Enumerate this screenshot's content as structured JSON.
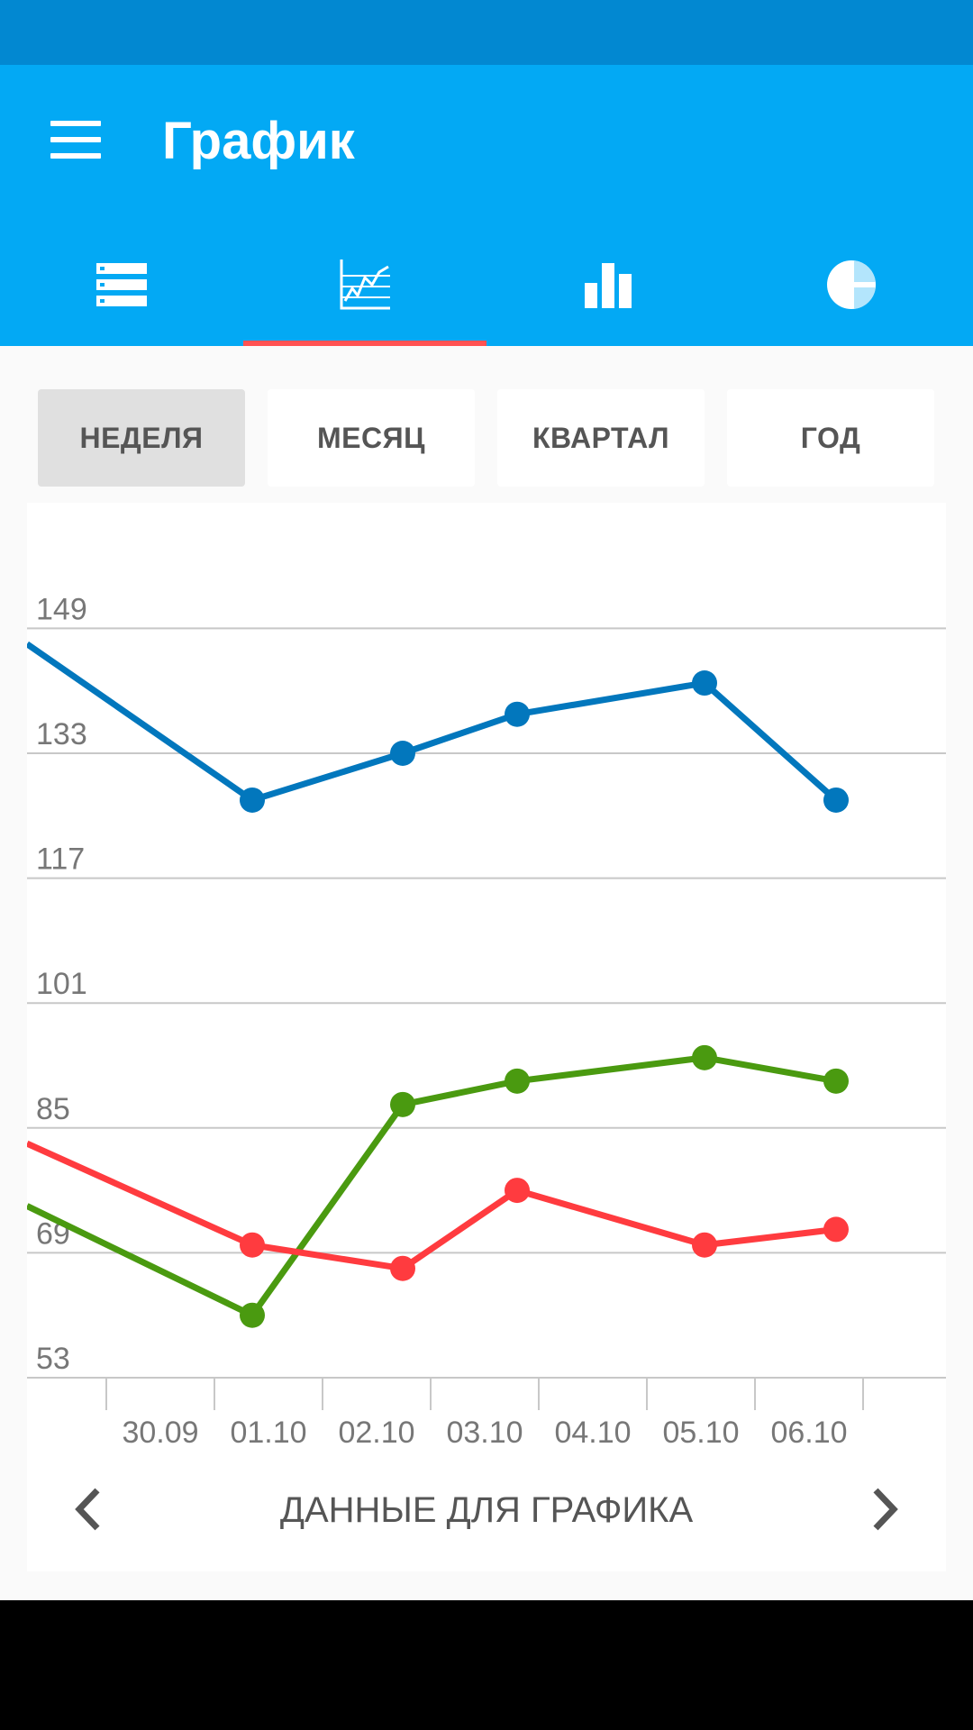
{
  "app_bar": {
    "title": "График"
  },
  "tabs": [
    {
      "name": "tab-list",
      "icon": "list-icon",
      "selected": false
    },
    {
      "name": "tab-line-chart",
      "icon": "line-chart-icon",
      "selected": true
    },
    {
      "name": "tab-bar-chart",
      "icon": "bar-chart-icon",
      "selected": false
    },
    {
      "name": "tab-pie-chart",
      "icon": "pie-chart-icon",
      "selected": false
    }
  ],
  "ranges": {
    "week": "НЕДЕЛЯ",
    "month": "МЕСЯЦ",
    "quarter": "КВАРТАЛ",
    "year": "ГОД",
    "selected": "week"
  },
  "footer": {
    "data_label": "ДАННЫЕ ДЛЯ ГРАФИКА",
    "prev_icon": "chevron-left-icon",
    "next_icon": "chevron-right-icon"
  },
  "colors": {
    "accent": "#03a9f4",
    "status_bar": "#0288d1",
    "indicator": "#ff5252"
  },
  "chart_data": {
    "type": "line",
    "x": [
      "30.09",
      "01.10",
      "02.10",
      "03.10",
      "04.10",
      "05.10",
      "06.10"
    ],
    "ylim": [
      53,
      149
    ],
    "yticks": [
      53,
      69,
      85,
      101,
      117,
      133,
      149
    ],
    "grid": true,
    "series": [
      {
        "color": "#0277bd",
        "values": [
          null,
          127,
          133,
          138,
          null,
          142,
          127
        ],
        "lead_in": 147
      },
      {
        "color": "#4a9a10",
        "values": [
          null,
          61,
          88,
          91,
          null,
          94,
          91
        ],
        "lead_in": 75
      },
      {
        "color": "#ff3b3f",
        "values": [
          null,
          70,
          67,
          77,
          null,
          70,
          72
        ],
        "lead_in": 83
      }
    ]
  }
}
